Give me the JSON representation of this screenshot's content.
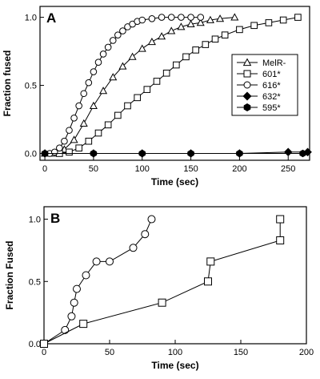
{
  "chart_data": [
    {
      "type": "scatter",
      "panel_label": "A",
      "xlabel": "Time (sec)",
      "ylabel": "Fraction fused",
      "xlim": [
        -5,
        272
      ],
      "ylim": [
        -0.05,
        1.08
      ],
      "xticks": [
        0,
        50,
        100,
        150,
        200,
        250
      ],
      "yticks": [
        0.0,
        0.5,
        1.0
      ],
      "ytick_labels": [
        "0.0",
        "0.5",
        "1.0"
      ],
      "grid": false,
      "legend_position": "right-middle",
      "series": [
        {
          "name": "MelR-",
          "marker": "triangle",
          "x": [
            0,
            10,
            20,
            30,
            40,
            50,
            60,
            70,
            80,
            90,
            100,
            110,
            120,
            130,
            140,
            150,
            160,
            170,
            180,
            195
          ],
          "y": [
            0,
            0,
            0.03,
            0.1,
            0.22,
            0.35,
            0.46,
            0.56,
            0.64,
            0.71,
            0.77,
            0.82,
            0.86,
            0.9,
            0.93,
            0.95,
            0.96,
            0.98,
            0.99,
            1.0
          ]
        },
        {
          "name": "601*",
          "marker": "square",
          "x": [
            15,
            25,
            35,
            45,
            55,
            65,
            75,
            85,
            95,
            105,
            115,
            125,
            135,
            145,
            155,
            165,
            175,
            185,
            200,
            215,
            230,
            245,
            260
          ],
          "y": [
            0,
            0.01,
            0.04,
            0.09,
            0.15,
            0.21,
            0.28,
            0.35,
            0.41,
            0.47,
            0.53,
            0.59,
            0.65,
            0.71,
            0.76,
            0.8,
            0.84,
            0.87,
            0.91,
            0.94,
            0.96,
            0.98,
            1.0
          ]
        },
        {
          "name": "616*",
          "marker": "circle",
          "x": [
            5,
            10,
            15,
            20,
            25,
            30,
            35,
            40,
            45,
            50,
            55,
            60,
            65,
            70,
            75,
            80,
            85,
            90,
            95,
            100,
            110,
            120,
            130,
            140,
            150,
            160
          ],
          "y": [
            0,
            0.01,
            0.04,
            0.09,
            0.17,
            0.26,
            0.35,
            0.44,
            0.52,
            0.6,
            0.67,
            0.73,
            0.78,
            0.83,
            0.87,
            0.9,
            0.93,
            0.95,
            0.97,
            0.98,
            0.99,
            1.0,
            1.0,
            1.0,
            1.0,
            1.0
          ]
        },
        {
          "name": "632*",
          "marker": "diamond",
          "x": [
            0,
            50,
            100,
            150,
            200,
            250,
            270
          ],
          "y": [
            0,
            0,
            0,
            0,
            0,
            0.01,
            0.01
          ]
        },
        {
          "name": "595*",
          "marker": "hexagon",
          "x": [
            0,
            50,
            100,
            150,
            200,
            265
          ],
          "y": [
            0,
            0,
            0,
            0,
            0,
            0
          ]
        }
      ]
    },
    {
      "type": "line",
      "panel_label": "B",
      "xlabel": "Time (sec)",
      "ylabel": "Fraction Fused",
      "xlim": [
        0,
        200
      ],
      "ylim": [
        0,
        1.1
      ],
      "xticks": [
        0,
        50,
        100,
        150,
        200
      ],
      "yticks": [
        0.0,
        0.5,
        1.0
      ],
      "ytick_labels": [
        "0.0",
        "0.5",
        "1.0"
      ],
      "grid": false,
      "series": [
        {
          "marker": "circle",
          "x": [
            0,
            16,
            21,
            23,
            25,
            32,
            40,
            50,
            68,
            77,
            82
          ],
          "y": [
            0,
            0.11,
            0.22,
            0.33,
            0.44,
            0.55,
            0.66,
            0.66,
            0.77,
            0.88,
            1.0
          ]
        },
        {
          "marker": "square",
          "x": [
            0,
            30,
            90,
            125,
            127,
            180,
            180
          ],
          "y": [
            0,
            0.16,
            0.33,
            0.5,
            0.66,
            0.83,
            1.0
          ]
        }
      ]
    }
  ]
}
